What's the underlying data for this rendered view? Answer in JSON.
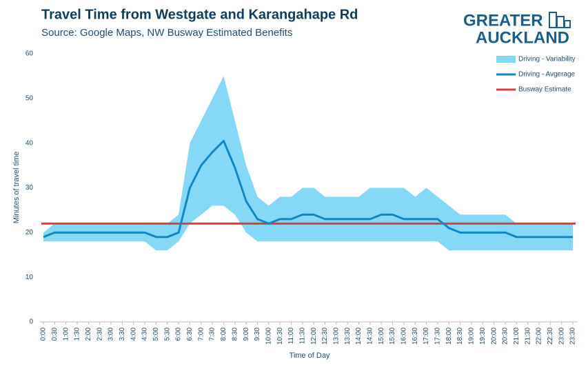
{
  "chart_data": {
    "type": "band-line",
    "title": "Travel Time from Westgate and Karangahape Rd",
    "subtitle": "Source: Google Maps, NW Busway Estimated Benefits",
    "x_label": "Time of Day",
    "y_label": "Minutes of travel time",
    "categories": [
      "0:00",
      "0:30",
      "1:00",
      "1:30",
      "2:00",
      "2:30",
      "3:00",
      "3:30",
      "4:00",
      "4:30",
      "5:00",
      "5:30",
      "6:00",
      "6:30",
      "7:00",
      "7:30",
      "8:00",
      "8:30",
      "9:00",
      "9:30",
      "10:00",
      "10:30",
      "11:00",
      "11:30",
      "12:00",
      "12:30",
      "13:00",
      "13:30",
      "14:00",
      "14:30",
      "15:00",
      "15:30",
      "16:00",
      "16:30",
      "17:00",
      "17:30",
      "18:00",
      "18:30",
      "19:00",
      "19:30",
      "20:00",
      "20:30",
      "21:00",
      "21:30",
      "22:00",
      "22:30",
      "23:00",
      "23:30"
    ],
    "ylim": [
      0,
      60
    ],
    "yticks": [
      0,
      10,
      20,
      30,
      40,
      50,
      60
    ],
    "grid": false,
    "legend": "top-right",
    "series": [
      {
        "name": "Driving - Variability",
        "color": "#86d8f7",
        "lower": [
          18,
          18,
          18,
          18,
          18,
          18,
          18,
          18,
          18,
          18,
          16,
          16,
          18,
          22,
          24,
          26,
          26,
          24,
          20,
          18,
          18,
          18,
          18,
          18,
          18,
          18,
          18,
          18,
          18,
          18,
          18,
          18,
          18,
          18,
          18,
          18,
          16,
          16,
          16,
          16,
          16,
          16,
          16,
          16,
          16,
          16,
          16,
          16
        ],
        "upper": [
          20,
          22,
          22,
          22,
          22,
          22,
          22,
          22,
          22,
          22,
          22,
          22,
          24,
          40,
          45,
          50,
          55,
          45,
          35,
          28,
          26,
          28,
          28,
          30,
          30,
          28,
          28,
          28,
          28,
          30,
          30,
          30,
          30,
          28,
          30,
          28,
          26,
          24,
          24,
          24,
          24,
          24,
          22,
          22,
          22,
          22,
          22,
          22
        ]
      },
      {
        "name": "Driving - Avgerage",
        "color": "#1188c2",
        "values": [
          19,
          20,
          20,
          20,
          20,
          20,
          20,
          20,
          20,
          20,
          19,
          19,
          20,
          30,
          35,
          38,
          40.5,
          34.5,
          27,
          23,
          22,
          23,
          23,
          24,
          24,
          23,
          23,
          23,
          23,
          23,
          24,
          24,
          23,
          23,
          23,
          23,
          21,
          20,
          20,
          20,
          20,
          20,
          19,
          19,
          19,
          19,
          19,
          19
        ]
      },
      {
        "name": "Busway Estimate",
        "color": "#e23b3b",
        "value": 22
      }
    ]
  },
  "logo": {
    "line1": "GREATER",
    "line2": "AUCKLAND"
  }
}
